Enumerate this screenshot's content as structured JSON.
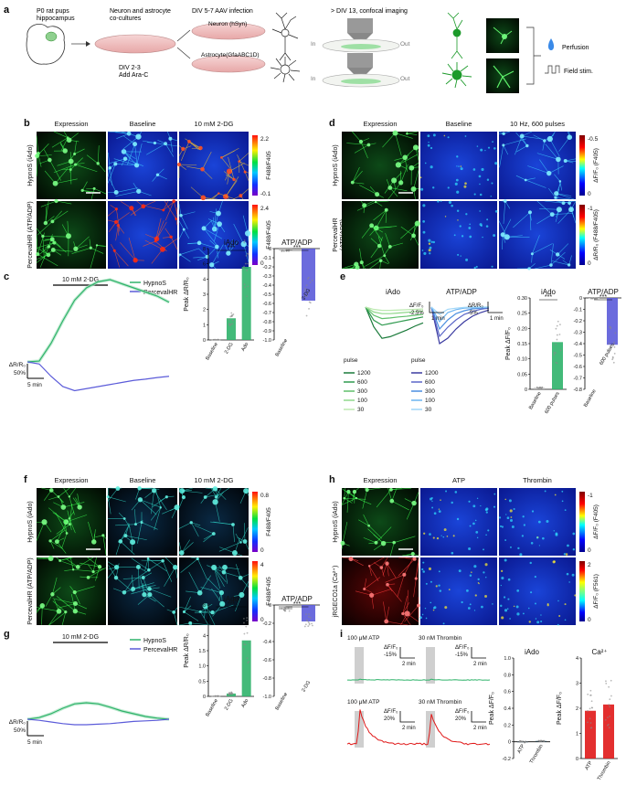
{
  "colors": {
    "hypnos": "#2fb36a",
    "perceval": "#5b5bd9",
    "gfp": "#2ec440",
    "red": "#e01818",
    "grey": "#9a9a9a"
  },
  "panel_a": {
    "letter": "a",
    "pups": "P0 rat pups\nhippocampus",
    "culture": "Neuron and astrocyte\nco-cultures",
    "div23": "DIV 2-3\nAdd Ara-C",
    "div57": "DIV 5-7 AAV infection",
    "neuron_dish": "Neuron (hSyn)",
    "astro_dish": "Astrocyte(GfaABC1D)",
    "div13": "> DIV 13, confocal imaging",
    "in": "In",
    "out": "Out",
    "perfusion": "Perfusion",
    "field": "Field stim."
  },
  "panel_b": {
    "letter": "b",
    "cols": [
      "Expression",
      "Baseline",
      "10 mM 2-DG"
    ],
    "rows": [
      "HypnoS (iAdo)",
      "PercevalHR (ATP/ADP)"
    ],
    "cb1": {
      "max": "2.2",
      "min": "-0.1",
      "label": "F488/F405"
    },
    "cb2": {
      "max": "2.4",
      "min": "0",
      "label": "F488/F405"
    }
  },
  "panel_c": {
    "letter": "c",
    "bar_label": "10 mM 2-DG",
    "legend": [
      "HypnoS",
      "PercevalHR"
    ],
    "scale_y": "ΔR/R₀",
    "scale_y_val": "50%",
    "scale_x": "5 min",
    "iado_title": "iAdo",
    "atp_title": "ATP/ADP",
    "ylabel": "Peak ΔR/R₀",
    "iado_ticks": [
      "0",
      "1",
      "2",
      "3",
      "4",
      "6",
      "8"
    ],
    "atp_ticks": [
      "0",
      "-0.1",
      "-0.2",
      "-0.3",
      "-0.4",
      "-0.5",
      "-0.6",
      "-0.7",
      "-0.8",
      "-0.9",
      "-1.0"
    ],
    "iado_cats": [
      "Baseline",
      "2-DG",
      "Ado"
    ],
    "atp_cats": [
      "Baseline",
      "2-DG"
    ],
    "sig": "***"
  },
  "panel_d": {
    "letter": "d",
    "cols": [
      "Expression",
      "Baseline",
      "10 Hz, 600 pulses"
    ],
    "rows": [
      "HypnoS (iAdo)",
      "PercevalHR\n(ATP/ADP)"
    ],
    "cb1": {
      "max": "-0.5",
      "min": "0",
      "label": "ΔF/F₀ (F405)"
    },
    "cb2": {
      "max": "-1",
      "min": "0",
      "label": "ΔR/R₀ (F488/F405)"
    }
  },
  "panel_e": {
    "letter": "e",
    "iado_title": "iAdo",
    "atp_title": "ATP/ADP",
    "pulse": "pulse",
    "pulses": [
      "1200",
      "600",
      "300",
      "100",
      "30"
    ],
    "scale1_y": "ΔF/F₀",
    "scale1_val": "-2.5%",
    "scale1_x": "1 min",
    "scale2_y": "ΔR/R₀",
    "scale2_val": "-5%",
    "scale2_x": "1 min",
    "bar_iado_title": "iAdo",
    "bar_atp_title": "ATP/ADP",
    "ylabel": "Peak ΔF/F₀",
    "iado_ticks": [
      "0",
      "0.05",
      "0.10",
      "0.15",
      "0.20",
      "0.25",
      "0.30"
    ],
    "atp_ticks": [
      "0",
      "-0.1",
      "-0.2",
      "-0.3",
      "-0.4",
      "-0.5",
      "-0.6",
      "-0.7",
      "-0.8"
    ],
    "cats": [
      "Baseline",
      "600 pulses"
    ],
    "sig": "***"
  },
  "panel_f": {
    "letter": "f",
    "cols": [
      "Expression",
      "Baseline",
      "10 mM 2-DG"
    ],
    "rows": [
      "HypnoS (iAdo)",
      "PercevalHR (ATP/ADP)"
    ],
    "cb1": {
      "max": "0.8",
      "min": "0",
      "label": "F488/F405"
    },
    "cb2": {
      "max": "4",
      "min": "0",
      "label": "F488/F405"
    }
  },
  "panel_g": {
    "letter": "g",
    "bar_label": "10 mM 2-DG",
    "legend": [
      "HypnoS",
      "PercevalHR"
    ],
    "scale_y": "ΔR/R₀",
    "scale_y_val": "50%",
    "scale_x": "5 min",
    "iado_title": "iAdo",
    "atp_title": "ATP/ADP",
    "ylabel": "Peak ΔR/R₀",
    "iado_ticks": [
      "0",
      "0.5",
      "1.0",
      "1.5",
      "4",
      "6",
      "8"
    ],
    "atp_ticks": [
      "0",
      "-0.2",
      "-0.4",
      "-0.6",
      "-0.8",
      "-1.0"
    ],
    "iado_cats": [
      "Baseline",
      "2-DG",
      "Ado"
    ],
    "atp_cats": [
      "Baseline",
      "2-DG"
    ],
    "sig": "***"
  },
  "panel_h": {
    "letter": "h",
    "cols": [
      "Expression",
      "ATP",
      "Thrombin"
    ],
    "rows": [
      "HypnoS (iAdo)",
      "jRGECO1a (Ca²⁺)"
    ],
    "cb1": {
      "max": "-1",
      "min": "0",
      "label": "ΔF/F₀ (F405)"
    },
    "cb2": {
      "max": "2",
      "min": "0",
      "label": "ΔF/F₀ (F561)"
    }
  },
  "panel_i": {
    "letter": "i",
    "atp": "100 μM ATP",
    "thrombin": "30 nM Thrombin",
    "scale_top_y": "ΔF/F₀",
    "scale_top_val": "-15%",
    "scale_bot_y": "ΔF/F₀",
    "scale_bot_val": "20%",
    "scale_x": "2 min",
    "iado_title": "iAdo",
    "ca_title": "Ca²⁺",
    "ylabel": "Peak ΔF/F₀",
    "iado_ticks": [
      "-0.2",
      "0",
      "0.2",
      "0.4",
      "0.6",
      "0.8",
      "1.0"
    ],
    "ca_ticks": [
      "0",
      "1",
      "2",
      "3",
      "4"
    ],
    "cats": [
      "ATP",
      "Thrombin"
    ]
  },
  "chart_data": [
    {
      "type": "line",
      "panel": "c",
      "series": [
        {
          "name": "HypnoS",
          "x": [
            0,
            2,
            4,
            6,
            8,
            10,
            12,
            14,
            16,
            18,
            20,
            22,
            24
          ],
          "values": [
            0,
            0.02,
            0.45,
            1.0,
            1.5,
            1.8,
            1.95,
            2.0,
            1.9,
            1.8,
            1.7,
            1.6,
            1.45
          ]
        },
        {
          "name": "PercevalHR",
          "x": [
            0,
            2,
            4,
            6,
            8,
            10,
            12,
            14,
            16,
            18,
            20,
            22,
            24
          ],
          "values": [
            0,
            -0.05,
            -0.35,
            -0.6,
            -0.7,
            -0.65,
            -0.6,
            -0.55,
            -0.5,
            -0.45,
            -0.42,
            -0.38,
            -0.35
          ]
        }
      ]
    },
    {
      "type": "bar",
      "panel": "c-iado",
      "categories": [
        "Baseline",
        "2-DG",
        "Ado"
      ],
      "values": [
        0.02,
        1.9,
        6.4
      ],
      "ylim": [
        0,
        8
      ]
    },
    {
      "type": "bar",
      "panel": "c-atp",
      "categories": [
        "Baseline",
        "2-DG"
      ],
      "values": [
        -0.02,
        -0.57
      ],
      "ylim": [
        -1.0,
        0
      ]
    },
    {
      "type": "line",
      "panel": "e-iado",
      "series": [
        {
          "name": "1200",
          "values": [
            0,
            -0.6,
            -0.95,
            -0.9,
            -0.8,
            -0.7,
            -0.58,
            -0.48
          ]
        },
        {
          "name": "600",
          "values": [
            0,
            -0.4,
            -0.55,
            -0.5,
            -0.45,
            -0.4,
            -0.35,
            -0.3
          ]
        },
        {
          "name": "300",
          "values": [
            0,
            -0.25,
            -0.35,
            -0.33,
            -0.3,
            -0.28,
            -0.25,
            -0.22
          ]
        },
        {
          "name": "100",
          "values": [
            0,
            -0.15,
            -0.2,
            -0.2,
            -0.18,
            -0.16,
            -0.14,
            -0.12
          ]
        },
        {
          "name": "30",
          "values": [
            0,
            -0.07,
            -0.1,
            -0.1,
            -0.09,
            -0.08,
            -0.07,
            -0.06
          ]
        }
      ]
    },
    {
      "type": "line",
      "panel": "e-atp",
      "series": [
        {
          "name": "1200",
          "values": [
            0,
            -1.0,
            -0.85,
            -0.6,
            -0.4,
            -0.25,
            -0.15,
            -0.08
          ]
        },
        {
          "name": "600",
          "values": [
            0,
            -0.8,
            -0.55,
            -0.35,
            -0.2,
            -0.12,
            -0.06,
            -0.03
          ]
        },
        {
          "name": "300",
          "values": [
            0,
            -0.6,
            -0.35,
            -0.18,
            -0.1,
            -0.05,
            -0.03,
            -0.01
          ]
        },
        {
          "name": "100",
          "values": [
            0,
            -0.4,
            -0.15,
            -0.07,
            -0.03,
            -0.02,
            -0.01,
            0
          ]
        },
        {
          "name": "30",
          "values": [
            0,
            -0.2,
            -0.06,
            -0.03,
            -0.01,
            0,
            0,
            0
          ]
        }
      ]
    },
    {
      "type": "bar",
      "panel": "e-iado-bar",
      "categories": [
        "Baseline",
        "600 pulses"
      ],
      "values": [
        0.005,
        0.155
      ],
      "ylim": [
        0,
        0.3
      ]
    },
    {
      "type": "bar",
      "panel": "e-atp-bar",
      "categories": [
        "Baseline",
        "600 pulses"
      ],
      "values": [
        -0.005,
        -0.41
      ],
      "ylim": [
        -0.8,
        0
      ]
    },
    {
      "type": "line",
      "panel": "g",
      "series": [
        {
          "name": "HypnoS",
          "x": [
            0,
            2,
            4,
            6,
            8,
            10,
            12,
            14,
            16,
            18,
            20,
            22,
            24
          ],
          "values": [
            0,
            0.03,
            0.1,
            0.2,
            0.28,
            0.3,
            0.28,
            0.22,
            0.15,
            0.1,
            0.05,
            0.02,
            0
          ]
        },
        {
          "name": "PercevalHR",
          "x": [
            0,
            2,
            4,
            6,
            8,
            10,
            12,
            14,
            16,
            18,
            20,
            22,
            24
          ],
          "values": [
            0,
            -0.02,
            -0.05,
            -0.08,
            -0.1,
            -0.1,
            -0.09,
            -0.08,
            -0.06,
            -0.04,
            -0.03,
            -0.02,
            0
          ]
        }
      ]
    },
    {
      "type": "bar",
      "panel": "g-iado",
      "categories": [
        "Baseline",
        "2-DG",
        "Ado"
      ],
      "values": [
        0.02,
        0.25,
        4.9
      ],
      "ylim": [
        0,
        8
      ]
    },
    {
      "type": "bar",
      "panel": "g-atp",
      "categories": [
        "Baseline",
        "2-DG"
      ],
      "values": [
        -0.05,
        -0.18
      ],
      "ylim": [
        -1.0,
        0
      ]
    },
    {
      "type": "bar",
      "panel": "i-iado",
      "categories": [
        "ATP",
        "Thrombin"
      ],
      "values": [
        0.0,
        0.01
      ],
      "ylim": [
        -0.2,
        1.0
      ]
    },
    {
      "type": "bar",
      "panel": "i-ca",
      "categories": [
        "ATP",
        "Thrombin"
      ],
      "values": [
        1.9,
        2.15
      ],
      "ylim": [
        0,
        4
      ]
    }
  ]
}
